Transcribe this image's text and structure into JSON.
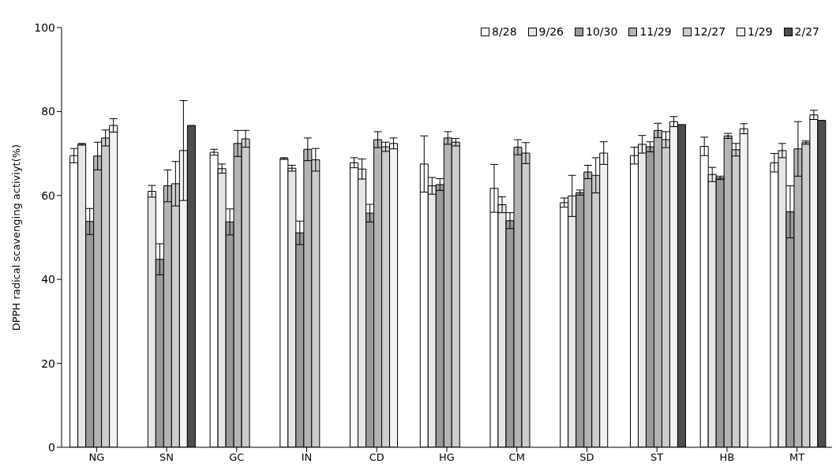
{
  "chart_data": {
    "type": "bar",
    "ylabel": "DPPH radical scavenging activiyt(%)",
    "categories": [
      "NG",
      "SN",
      "GC",
      "IN",
      "CD",
      "HG",
      "CM",
      "SD",
      "ST",
      "HB",
      "MT"
    ],
    "ylim": [
      0,
      100
    ],
    "yticks": [
      0,
      20,
      40,
      60,
      80,
      100
    ],
    "grid": false,
    "legend": "top right",
    "series": [
      {
        "name": "8/28",
        "color": "#ffffff",
        "values": [
          69.5,
          null,
          70.3,
          68.8,
          67.8,
          67.5,
          61.7,
          58.3,
          69.5,
          71.7,
          67.8
        ],
        "errors": [
          1.7,
          null,
          0.7,
          0.2,
          1.2,
          6.7,
          5.7,
          1.1,
          2.0,
          2.2,
          2.2
        ]
      },
      {
        "name": "9/26",
        "color": "#e6e6e6",
        "values": [
          72.2,
          61.0,
          66.4,
          66.5,
          66.3,
          62.3,
          57.8,
          59.9,
          72.2,
          65.0,
          70.7
        ],
        "errors": [
          0.2,
          1.4,
          1.1,
          0.7,
          2.4,
          2.0,
          1.9,
          4.9,
          2.1,
          1.7,
          1.7
        ]
      },
      {
        "name": "10/30",
        "color": "#9a9a9a",
        "values": [
          53.8,
          44.8,
          53.7,
          51.1,
          55.8,
          62.6,
          54.0,
          60.7,
          71.6,
          64.2,
          56.1
        ],
        "errors": [
          3.1,
          3.7,
          3.1,
          2.8,
          2.1,
          1.4,
          1.9,
          0.6,
          1.2,
          0.4,
          6.2
        ]
      },
      {
        "name": "11/29",
        "color": "#b4b4b4",
        "values": [
          69.4,
          62.3,
          72.4,
          71.0,
          73.3,
          73.7,
          71.5,
          65.6,
          75.5,
          74.2,
          71.1
        ],
        "errors": [
          3.3,
          3.8,
          3.1,
          2.7,
          1.9,
          1.5,
          1.8,
          1.6,
          1.7,
          0.6,
          6.5
        ]
      },
      {
        "name": "12/27",
        "color": "#cccccc",
        "values": [
          73.7,
          62.8,
          73.5,
          68.5,
          71.6,
          72.7,
          70.1,
          64.8,
          73.3,
          70.9,
          72.6
        ],
        "errors": [
          1.9,
          5.3,
          2.0,
          2.7,
          1.1,
          0.9,
          2.5,
          4.2,
          1.9,
          1.5,
          0.4
        ]
      },
      {
        "name": "1/29",
        "color": "#f2f2f2",
        "values": [
          76.7,
          70.7,
          null,
          null,
          72.4,
          null,
          null,
          70.1,
          77.6,
          75.9,
          79.2
        ],
        "errors": [
          1.6,
          11.9,
          null,
          null,
          1.3,
          null,
          null,
          2.7,
          1.2,
          1.2,
          1.1
        ]
      },
      {
        "name": "2/27",
        "color": "#4d4d4d",
        "values": [
          null,
          76.7,
          null,
          null,
          null,
          null,
          null,
          null,
          76.9,
          null,
          77.9
        ]
      }
    ]
  }
}
